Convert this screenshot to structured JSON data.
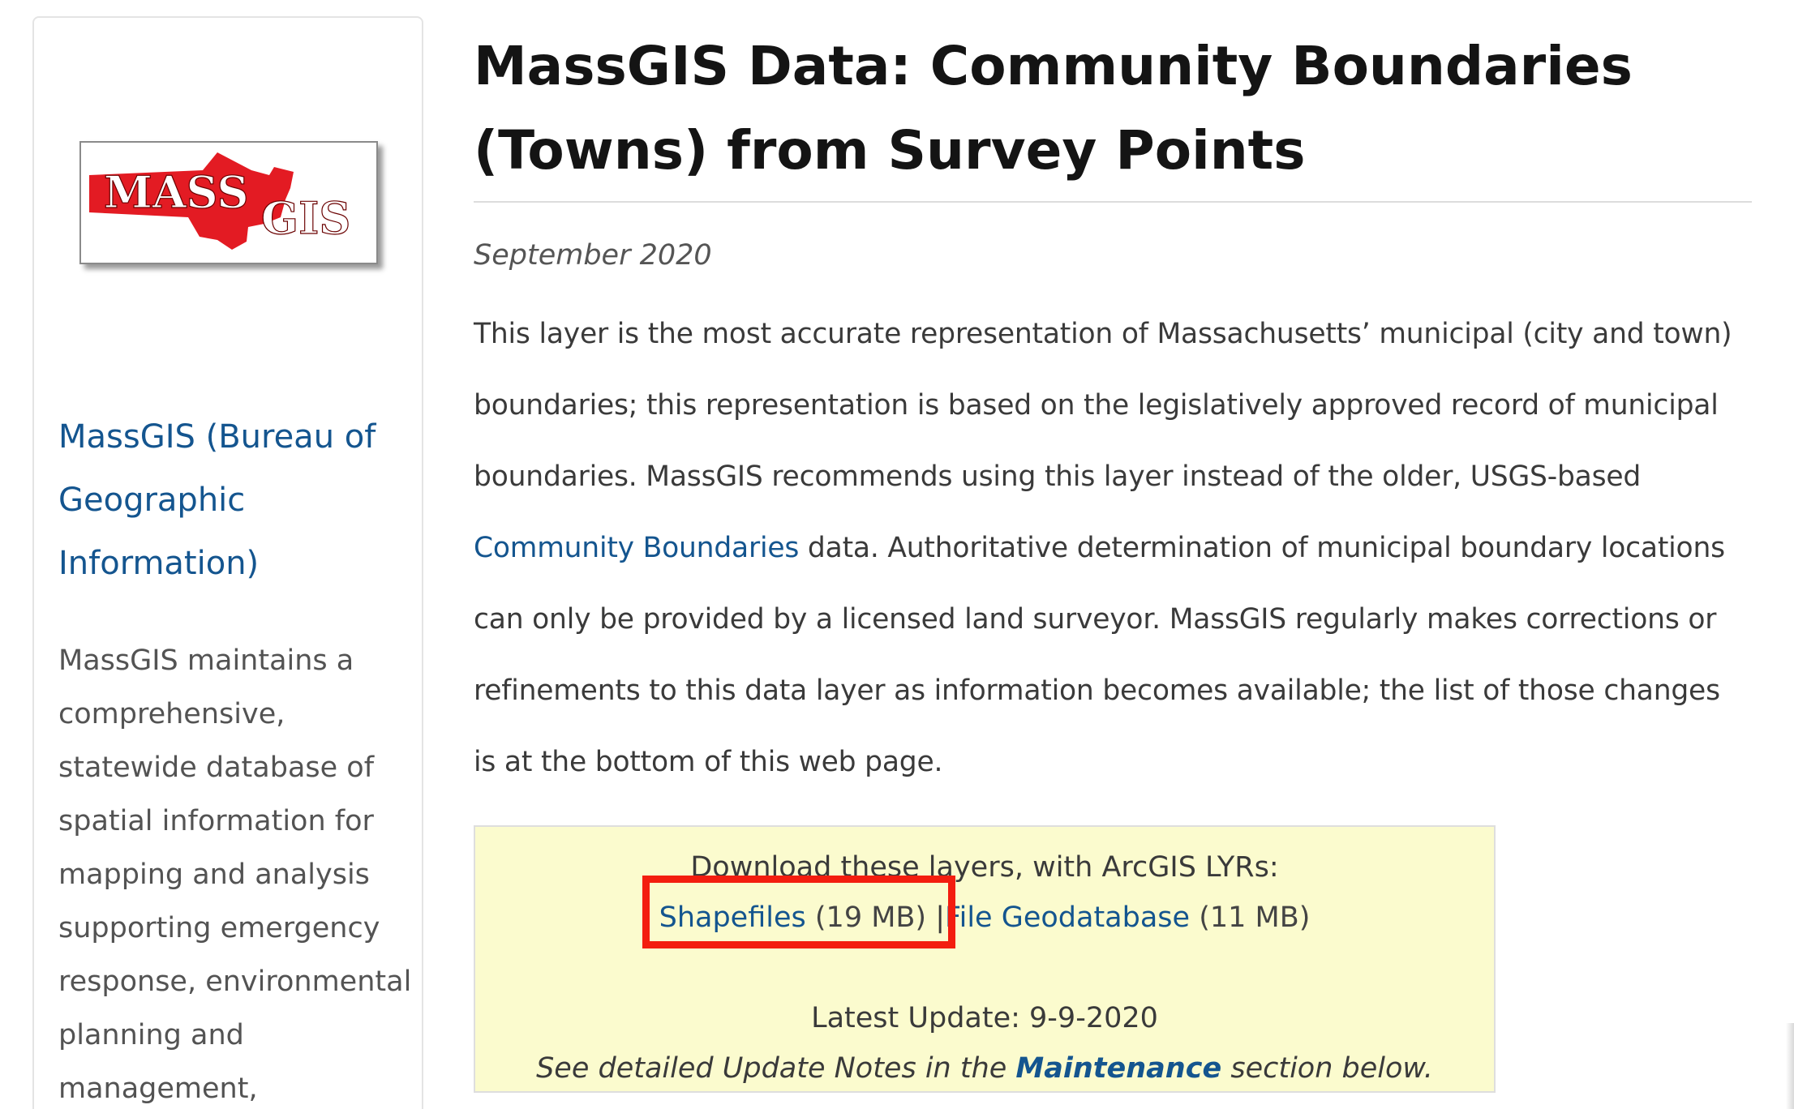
{
  "sidebar": {
    "logo": {
      "text_mass": "MASS",
      "text_gis": "GIS",
      "colors": {
        "red": "#e31b23",
        "text": "#ffffff",
        "frame": "#8a8a8a"
      }
    },
    "org_link": "MassGIS (Bureau of Geographic Information)",
    "description": "MassGIS maintains a comprehensive, statewide database of spatial information for mapping and analysis supporting emergency response, environmental planning and management,"
  },
  "main": {
    "title": "MassGIS Data: Community Boundaries (Towns) from Survey Points",
    "date": "September 2020",
    "description": {
      "part1": "This layer is the most accurate representation of Massachusetts’ municipal (city and town) boundaries; this representation is based on the legislatively approved record of municipal boundaries. MassGIS recommends using this layer instead of the older, USGS-based ",
      "link": "Community Boundaries",
      "part2": " data. Authoritative determination of municipal boundary locations can only be provided by a licensed land surveyor. MassGIS regularly makes corrections or refinements to this data layer as information becomes available; the list of those changes is at the bottom of this web page."
    },
    "download": {
      "heading": "Download these layers, with ArcGIS LYRs:",
      "shapefiles_label": "Shapefiles",
      "shapefiles_size": "(19 MB)",
      "separator": "|",
      "gdb_label": "File Geodatabase",
      "gdb_size": "(11 MB)",
      "latest_update": "Latest Update: 9-9-2020",
      "notes_prefix": "See detailed Update Notes in the ",
      "notes_link": "Maintenance",
      "notes_suffix": " section below.",
      "colors": {
        "background": "#fbfbce",
        "highlight": "#f31d0f",
        "link": "#14558f"
      }
    }
  }
}
